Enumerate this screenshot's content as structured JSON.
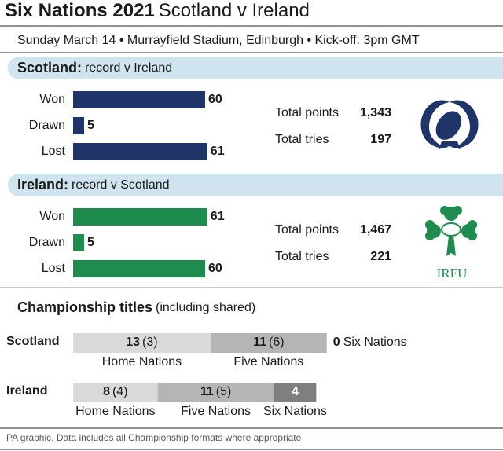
{
  "title": "Six Nations 2021",
  "subtitle": "Scotland v Ireland",
  "match_info": "Sunday March 14 • Murrayfield Stadium, Edinburgh • Kick-off: 3pm GMT",
  "chart_data": [
    {
      "type": "bar",
      "team": "Scotland:",
      "heading": "record v Ireland",
      "categories": [
        "Won",
        "Drawn",
        "Lost"
      ],
      "values": [
        60,
        5,
        61
      ],
      "color": "#1f3469",
      "stats": [
        {
          "label": "Total points",
          "value": "1,343"
        },
        {
          "label": "Total tries",
          "value": "197"
        }
      ]
    },
    {
      "type": "bar",
      "team": "Ireland:",
      "heading": "record v Scotland",
      "categories": [
        "Won",
        "Drawn",
        "Lost"
      ],
      "values": [
        61,
        5,
        60
      ],
      "color": "#1e8c4e",
      "stats": [
        {
          "label": "Total points",
          "value": "1,467"
        },
        {
          "label": "Total tries",
          "value": "221"
        }
      ],
      "logo_text": "IRFU"
    },
    {
      "type": "stacked_bar",
      "title": "Championship titles",
      "subtitle": "(including shared)",
      "categories": [
        "Scotland",
        "Ireland"
      ],
      "series": [
        {
          "name": "Home Nations",
          "color": "#d9d9d9",
          "values": [
            13,
            8
          ],
          "shared_labels": [
            "(3)",
            "(4)"
          ]
        },
        {
          "name": "Five Nations",
          "color": "#b5b5b5",
          "values": [
            11,
            11
          ],
          "shared_labels": [
            "(6)",
            "(5)"
          ]
        },
        {
          "name": "Six Nations",
          "color": "#7f7f7f",
          "values": [
            0,
            4
          ]
        }
      ]
    }
  ],
  "footer": "PA graphic. Data includes all Championship formats where appropriate"
}
